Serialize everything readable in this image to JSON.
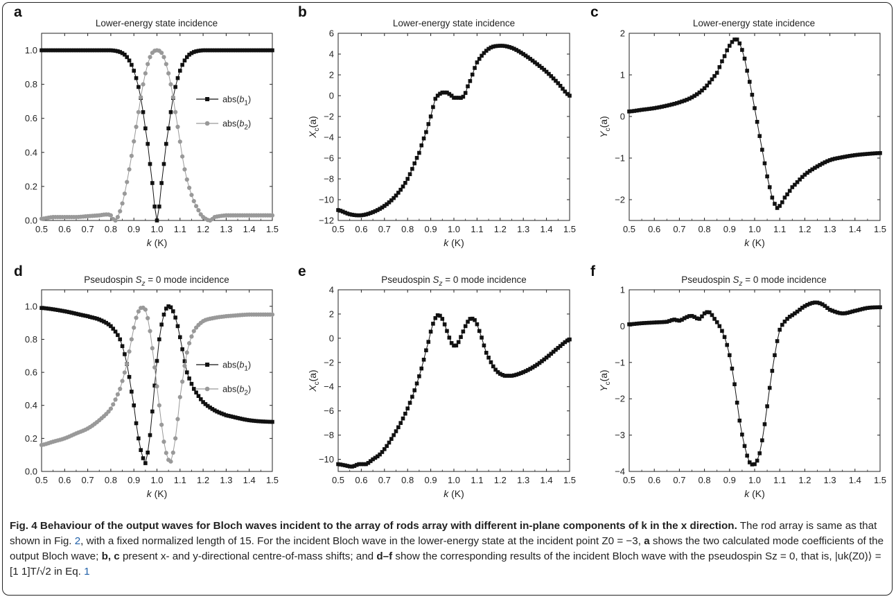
{
  "panels": [
    {
      "letter": "a",
      "title": "Lower-energy state incidence",
      "xlabel": "k (K)",
      "ylabel": "",
      "legend": [
        "abs(b1)",
        "abs(b2)"
      ]
    },
    {
      "letter": "b",
      "title": "Lower-energy state incidence",
      "xlabel": "k (K)",
      "ylabel": "Xc(a)"
    },
    {
      "letter": "c",
      "title": "Lower-energy state incidence",
      "xlabel": "k (K)",
      "ylabel": "Yc(a)"
    },
    {
      "letter": "d",
      "title": "Pseudospin Sz = 0 mode incidence",
      "xlabel": "k (K)",
      "ylabel": "",
      "legend": [
        "abs(b1)",
        "abs(b2)"
      ]
    },
    {
      "letter": "e",
      "title": "Pseudospin Sz = 0 mode incidence",
      "xlabel": "k (K)",
      "ylabel": "Xc(a)"
    },
    {
      "letter": "f",
      "title": "Pseudospin Sz = 0 mode incidence",
      "xlabel": "k (K)",
      "ylabel": "Yc(a)"
    }
  ],
  "chart_data": [
    {
      "panel": "a",
      "type": "scatter",
      "title": "Lower-energy state incidence",
      "xlabel": "k (K)",
      "ylabel": "",
      "xlim": [
        0.5,
        1.5
      ],
      "ylim": [
        0.0,
        1.1
      ],
      "xticks": [
        "0.5",
        "0.6",
        "0.7",
        "0.8",
        "0.9",
        "1.0",
        "1.1",
        "1.2",
        "1.3",
        "1.4",
        "1.5"
      ],
      "yticks": [
        "0.0",
        "0.2",
        "0.4",
        "0.6",
        "0.8",
        "1.0"
      ],
      "legend_placement": "right",
      "series": [
        {
          "name": "abs(b1)",
          "color": "#111111",
          "marker": "square",
          "x": [
            0.5,
            0.6,
            0.7,
            0.8,
            0.84,
            0.87,
            0.9,
            0.93,
            0.96,
            0.98,
            1.0,
            1.02,
            1.04,
            1.07,
            1.1,
            1.13,
            1.16,
            1.2,
            1.3,
            1.4,
            1.5
          ],
          "y": [
            1.0,
            1.0,
            1.0,
            1.0,
            0.99,
            0.96,
            0.88,
            0.72,
            0.45,
            0.22,
            0.0,
            0.22,
            0.45,
            0.72,
            0.88,
            0.96,
            0.99,
            1.0,
            1.0,
            1.0,
            1.0
          ]
        },
        {
          "name": "abs(b2)",
          "color": "#999999",
          "marker": "circle",
          "x": [
            0.5,
            0.55,
            0.6,
            0.65,
            0.7,
            0.75,
            0.78,
            0.8,
            0.82,
            0.85,
            0.88,
            0.91,
            0.94,
            0.97,
            1.0,
            1.03,
            1.06,
            1.09,
            1.12,
            1.15,
            1.18,
            1.2,
            1.23,
            1.25,
            1.3,
            1.4,
            1.5
          ],
          "y": [
            0.01,
            0.02,
            0.02,
            0.02,
            0.025,
            0.03,
            0.035,
            0.03,
            0.0,
            0.1,
            0.3,
            0.55,
            0.8,
            0.96,
            1.0,
            0.96,
            0.8,
            0.55,
            0.3,
            0.15,
            0.06,
            0.02,
            0.0,
            0.02,
            0.03,
            0.03,
            0.03
          ]
        }
      ]
    },
    {
      "panel": "b",
      "type": "scatter",
      "title": "Lower-energy state incidence",
      "xlabel": "k (K)",
      "ylabel": "Xc(a)",
      "xlim": [
        0.5,
        1.5
      ],
      "ylim": [
        -12,
        6
      ],
      "xticks": [
        "0.5",
        "0.6",
        "0.7",
        "0.8",
        "0.9",
        "1.0",
        "1.1",
        "1.2",
        "1.3",
        "1.4",
        "1.5"
      ],
      "yticks": [
        "-12",
        "-10",
        "-8",
        "-6",
        "-4",
        "-2",
        "0",
        "2",
        "4",
        "6"
      ],
      "series": [
        {
          "color": "#111111",
          "marker": "square",
          "x": [
            0.5,
            0.55,
            0.6,
            0.65,
            0.7,
            0.75,
            0.8,
            0.85,
            0.88,
            0.9,
            0.92,
            0.95,
            0.97,
            0.99,
            1.0,
            1.02,
            1.04,
            1.06,
            1.1,
            1.15,
            1.2,
            1.25,
            1.3,
            1.35,
            1.4,
            1.45,
            1.5
          ],
          "y": [
            -11.0,
            -11.4,
            -11.5,
            -11.2,
            -10.6,
            -9.6,
            -8.0,
            -5.5,
            -3.5,
            -2.0,
            -0.3,
            0.3,
            0.3,
            0.0,
            -0.2,
            -0.2,
            -0.1,
            0.9,
            3.2,
            4.5,
            4.8,
            4.6,
            4.0,
            3.2,
            2.3,
            1.2,
            0.0
          ]
        }
      ]
    },
    {
      "panel": "c",
      "type": "scatter",
      "title": "Lower-energy state incidence",
      "xlabel": "k (K)",
      "ylabel": "Yc(a)",
      "xlim": [
        0.5,
        1.5
      ],
      "ylim": [
        -2.5,
        2.0
      ],
      "xticks": [
        "0.5",
        "0.6",
        "0.7",
        "0.8",
        "0.9",
        "1.0",
        "1.1",
        "1.2",
        "1.3",
        "1.4",
        "1.5"
      ],
      "yticks": [
        "-2",
        "-1",
        "0",
        "1",
        "2"
      ],
      "series": [
        {
          "color": "#111111",
          "marker": "square",
          "x": [
            0.5,
            0.55,
            0.6,
            0.65,
            0.7,
            0.75,
            0.8,
            0.85,
            0.88,
            0.9,
            0.92,
            0.93,
            0.95,
            0.97,
            1.0,
            1.03,
            1.06,
            1.08,
            1.09,
            1.1,
            1.12,
            1.15,
            1.2,
            1.25,
            1.3,
            1.35,
            1.4,
            1.45,
            1.5
          ],
          "y": [
            0.12,
            0.16,
            0.2,
            0.26,
            0.34,
            0.46,
            0.68,
            1.05,
            1.45,
            1.7,
            1.85,
            1.85,
            1.6,
            1.1,
            0.2,
            -0.8,
            -1.7,
            -2.1,
            -2.2,
            -2.15,
            -1.95,
            -1.7,
            -1.4,
            -1.2,
            -1.05,
            -0.98,
            -0.93,
            -0.9,
            -0.88
          ]
        }
      ]
    },
    {
      "panel": "d",
      "type": "scatter",
      "title": "Pseudospin Sz = 0 mode incidence",
      "xlabel": "k (K)",
      "ylabel": "",
      "xlim": [
        0.5,
        1.5
      ],
      "ylim": [
        0.0,
        1.1
      ],
      "xticks": [
        "0.5",
        "0.6",
        "0.7",
        "0.8",
        "0.9",
        "1.0",
        "1.1",
        "1.2",
        "1.3",
        "1.4",
        "1.5"
      ],
      "yticks": [
        "0.0",
        "0.2",
        "0.4",
        "0.6",
        "0.8",
        "1.0"
      ],
      "legend_placement": "right",
      "series": [
        {
          "name": "abs(b1)",
          "color": "#111111",
          "marker": "square",
          "x": [
            0.5,
            0.6,
            0.7,
            0.75,
            0.8,
            0.84,
            0.87,
            0.9,
            0.92,
            0.94,
            0.95,
            0.97,
            0.99,
            1.01,
            1.03,
            1.05,
            1.07,
            1.09,
            1.11,
            1.13,
            1.16,
            1.2,
            1.25,
            1.3,
            1.4,
            1.5
          ],
          "y": [
            0.99,
            0.97,
            0.94,
            0.92,
            0.88,
            0.8,
            0.65,
            0.4,
            0.2,
            0.08,
            0.05,
            0.22,
            0.52,
            0.8,
            0.95,
            1.0,
            0.97,
            0.88,
            0.74,
            0.6,
            0.5,
            0.42,
            0.37,
            0.34,
            0.31,
            0.3
          ]
        },
        {
          "name": "abs(b2)",
          "color": "#999999",
          "marker": "circle",
          "x": [
            0.5,
            0.55,
            0.6,
            0.65,
            0.7,
            0.75,
            0.8,
            0.84,
            0.87,
            0.89,
            0.91,
            0.93,
            0.95,
            0.97,
            0.99,
            1.01,
            1.03,
            1.05,
            1.06,
            1.08,
            1.1,
            1.13,
            1.16,
            1.2,
            1.25,
            1.3,
            1.4,
            1.5
          ],
          "y": [
            0.16,
            0.18,
            0.2,
            0.23,
            0.26,
            0.31,
            0.38,
            0.5,
            0.65,
            0.8,
            0.93,
            0.99,
            0.98,
            0.85,
            0.63,
            0.4,
            0.18,
            0.07,
            0.06,
            0.2,
            0.45,
            0.72,
            0.85,
            0.91,
            0.93,
            0.94,
            0.95,
            0.95
          ]
        }
      ]
    },
    {
      "panel": "e",
      "type": "scatter",
      "title": "Pseudospin Sz = 0 mode incidence",
      "xlabel": "k (K)",
      "ylabel": "Xc(a)",
      "xlim": [
        0.5,
        1.5
      ],
      "ylim": [
        -11,
        4
      ],
      "xticks": [
        "0.5",
        "0.6",
        "0.7",
        "0.8",
        "0.9",
        "1.0",
        "1.1",
        "1.2",
        "1.3",
        "1.4",
        "1.5"
      ],
      "yticks": [
        "-10",
        "-8",
        "-6",
        "-4",
        "-2",
        "0",
        "2",
        "4"
      ],
      "series": [
        {
          "color": "#111111",
          "marker": "square",
          "x": [
            0.5,
            0.53,
            0.56,
            0.59,
            0.62,
            0.65,
            0.68,
            0.71,
            0.74,
            0.77,
            0.8,
            0.83,
            0.86,
            0.89,
            0.91,
            0.93,
            0.95,
            0.97,
            0.99,
            1.01,
            1.03,
            1.05,
            1.07,
            1.09,
            1.11,
            1.14,
            1.18,
            1.22,
            1.25,
            1.3,
            1.35,
            1.4,
            1.45,
            1.5
          ],
          "y": [
            -10.4,
            -10.5,
            -10.6,
            -10.4,
            -10.4,
            -10.0,
            -9.6,
            -8.9,
            -8.0,
            -7.0,
            -5.8,
            -4.3,
            -2.5,
            -0.3,
            1.2,
            1.9,
            1.6,
            0.6,
            -0.4,
            -0.6,
            0.1,
            1.0,
            1.6,
            1.5,
            0.6,
            -1.2,
            -2.6,
            -3.1,
            -3.1,
            -2.8,
            -2.3,
            -1.6,
            -0.8,
            -0.1
          ]
        }
      ]
    },
    {
      "panel": "f",
      "type": "scatter",
      "title": "Pseudospin Sz = 0 mode incidence",
      "xlabel": "k (K)",
      "ylabel": "Yc(a)",
      "xlim": [
        0.5,
        1.5
      ],
      "ylim": [
        -4,
        1
      ],
      "xticks": [
        "0.5",
        "0.6",
        "0.7",
        "0.8",
        "0.9",
        "1.0",
        "1.1",
        "1.2",
        "1.3",
        "1.4",
        "1.5"
      ],
      "yticks": [
        "-4",
        "-3",
        "-2",
        "-1",
        "0",
        "1"
      ],
      "series": [
        {
          "color": "#111111",
          "marker": "square",
          "x": [
            0.5,
            0.55,
            0.6,
            0.65,
            0.68,
            0.7,
            0.73,
            0.75,
            0.78,
            0.8,
            0.82,
            0.84,
            0.86,
            0.88,
            0.9,
            0.92,
            0.94,
            0.96,
            0.98,
            1.0,
            1.02,
            1.04,
            1.06,
            1.08,
            1.1,
            1.13,
            1.16,
            1.2,
            1.24,
            1.27,
            1.3,
            1.35,
            1.4,
            1.45,
            1.5
          ],
          "y": [
            0.05,
            0.08,
            0.1,
            0.12,
            0.18,
            0.15,
            0.25,
            0.28,
            0.2,
            0.35,
            0.38,
            0.2,
            0.0,
            -0.3,
            -0.8,
            -1.6,
            -2.6,
            -3.3,
            -3.75,
            -3.8,
            -3.5,
            -2.7,
            -1.7,
            -0.8,
            -0.1,
            0.2,
            0.35,
            0.55,
            0.65,
            0.6,
            0.45,
            0.35,
            0.42,
            0.5,
            0.52
          ]
        }
      ]
    }
  ],
  "caption": {
    "fig_label": "Fig. 4",
    "heading": "Behaviour of the output waves for Bloch waves incident to the array of rods array with different in-plane components of k in the x direction.",
    "s1": "The rod array is same as that shown in Fig.",
    "ref_fig": "2",
    "s2": ", with a fixed normalized length of 15. For the incident Bloch wave in the lower-energy state at the incident point Z0 = −3,",
    "p_a": "a",
    "s3": "shows the two calculated mode coefficients of the output Bloch wave;",
    "p_bc": "b, c",
    "s4": "present x- and y-directional centre-of-mass shifts; and",
    "p_df": "d–f",
    "s5": "show the corresponding results of the incident Bloch wave with the pseudospin Sz = 0, that is, |uk(Z0)⟩ = [1  1]T/√2 in Eq.",
    "ref_eq": "1"
  }
}
